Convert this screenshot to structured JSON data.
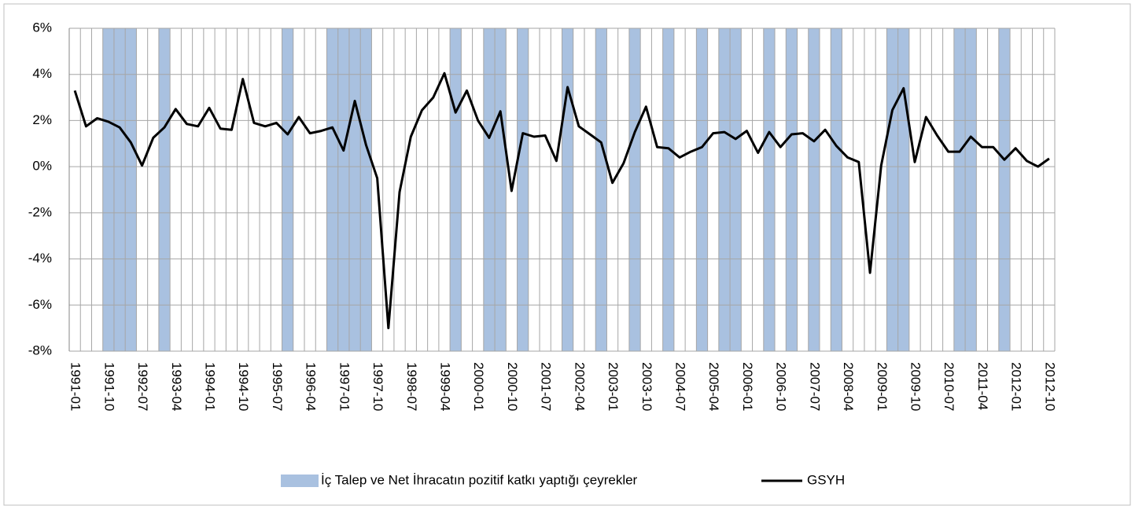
{
  "chart_data": {
    "type": "line",
    "categories": [
      "1991-01",
      null,
      null,
      "1991-10",
      null,
      null,
      "1992-07",
      null,
      null,
      "1993-04",
      null,
      null,
      "1994-01",
      null,
      null,
      "1994-10",
      null,
      null,
      "1995-07",
      null,
      null,
      "1996-04",
      null,
      null,
      "1997-01",
      null,
      null,
      "1997-10",
      null,
      null,
      "1998-07",
      null,
      null,
      "1999-04",
      null,
      null,
      "2000-01",
      null,
      null,
      "2000-10",
      null,
      null,
      "2001-07",
      null,
      null,
      "2002-04",
      null,
      null,
      "2003-01",
      null,
      null,
      "2003-10",
      null,
      null,
      "2004-07",
      null,
      null,
      "2005-04",
      null,
      null,
      "2006-01",
      null,
      null,
      "2006-10",
      null,
      null,
      "2007-07",
      null,
      null,
      "2008-04",
      null,
      null,
      "2009-01",
      null,
      null,
      "2009-10",
      null,
      null,
      "2010-07",
      null,
      null,
      "2011-04",
      null,
      null,
      "2012-01",
      null,
      null,
      "2012-10"
    ],
    "shaded": {
      "name": "İç Talep ve Net İhracatın pozitif katkı yaptığı çeyrekler",
      "color": "#a9c1e0",
      "values": [
        false,
        false,
        false,
        true,
        true,
        true,
        false,
        false,
        true,
        false,
        false,
        false,
        false,
        false,
        false,
        false,
        false,
        false,
        false,
        true,
        false,
        false,
        false,
        true,
        true,
        true,
        true,
        false,
        false,
        false,
        false,
        false,
        false,
        false,
        true,
        false,
        false,
        true,
        true,
        false,
        true,
        false,
        false,
        false,
        true,
        false,
        false,
        true,
        false,
        false,
        true,
        false,
        false,
        true,
        false,
        false,
        true,
        false,
        true,
        true,
        false,
        false,
        true,
        false,
        true,
        false,
        true,
        false,
        true,
        false,
        false,
        false,
        false,
        true,
        true,
        false,
        false,
        false,
        false,
        true,
        true,
        false,
        false,
        true,
        false,
        false,
        false,
        false
      ]
    },
    "series": [
      {
        "name": "GSYH",
        "color": "#000000",
        "values": [
          3.3,
          1.75,
          2.1,
          1.95,
          1.7,
          1.05,
          0.05,
          1.25,
          1.7,
          2.5,
          1.85,
          1.75,
          2.55,
          1.65,
          1.6,
          3.8,
          1.9,
          1.75,
          1.9,
          1.4,
          2.15,
          1.45,
          1.55,
          1.7,
          0.7,
          2.85,
          0.95,
          -0.5,
          -7.0,
          -1.1,
          1.3,
          2.45,
          3.0,
          4.05,
          2.35,
          3.3,
          2.0,
          1.25,
          2.4,
          -1.05,
          1.45,
          1.3,
          1.35,
          0.25,
          3.45,
          1.75,
          1.4,
          1.05,
          -0.7,
          0.15,
          1.5,
          2.6,
          0.85,
          0.8,
          0.4,
          0.65,
          0.85,
          1.45,
          1.5,
          1.2,
          1.55,
          0.6,
          1.5,
          0.85,
          1.4,
          1.45,
          1.1,
          1.6,
          0.9,
          0.4,
          0.2,
          -4.6,
          0.05,
          2.45,
          3.4,
          0.2,
          2.15,
          1.35,
          0.65,
          0.65,
          1.3,
          0.85,
          0.85,
          0.3,
          0.8,
          0.25,
          0.0,
          0.35
        ]
      }
    ],
    "ylim": [
      -8,
      6
    ],
    "yticks": [
      {
        "value": -8,
        "label": "-8%"
      },
      {
        "value": -6,
        "label": "-6%"
      },
      {
        "value": -4,
        "label": "-4%"
      },
      {
        "value": -2,
        "label": "-2%"
      },
      {
        "value": 0,
        "label": "0%"
      },
      {
        "value": 2,
        "label": "2%"
      },
      {
        "value": 4,
        "label": "4%"
      },
      {
        "value": 6,
        "label": "6%"
      }
    ],
    "grid": true
  }
}
